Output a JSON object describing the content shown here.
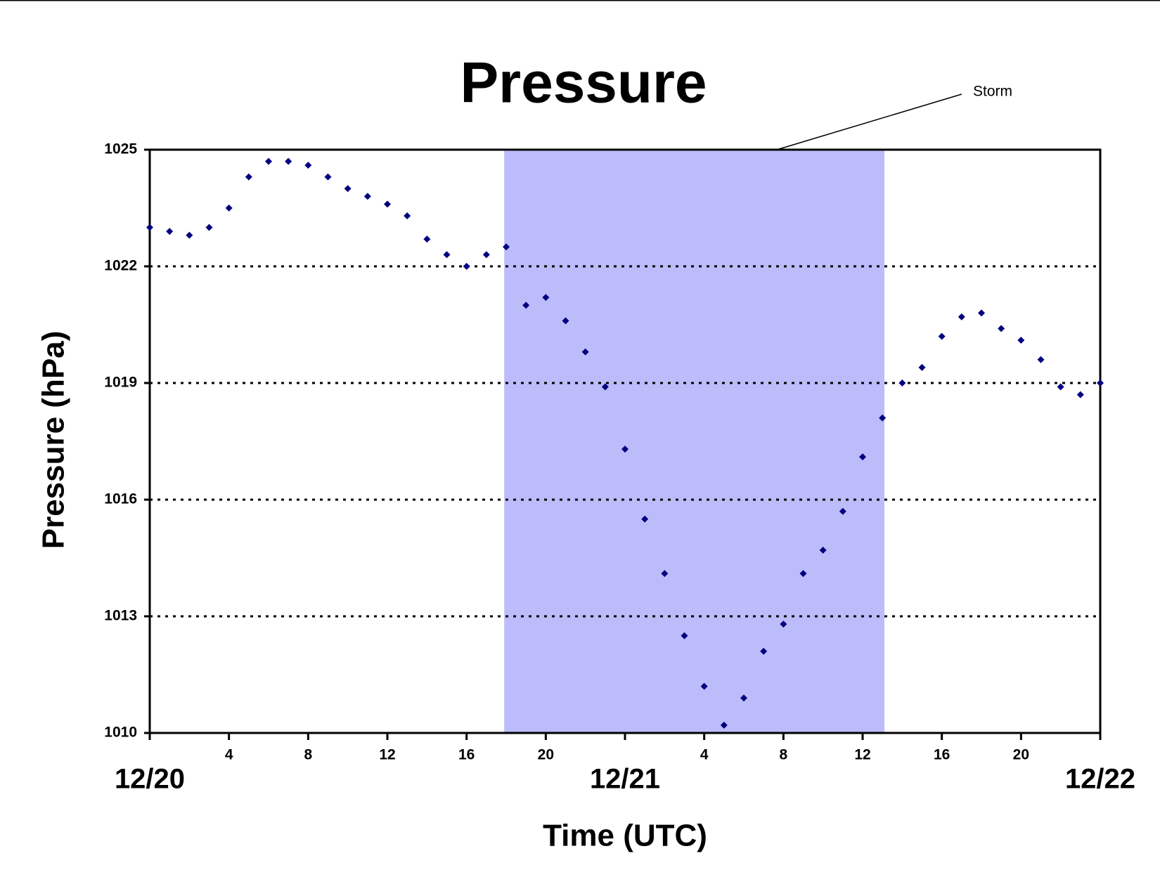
{
  "chart_data": {
    "type": "scatter",
    "title": "Pressure",
    "x_label": "Time (UTC)",
    "y_label": "Pressure (hPa)",
    "x": [
      0,
      1,
      2,
      3,
      4,
      5,
      6,
      7,
      8,
      9,
      10,
      11,
      12,
      13,
      14,
      15,
      16,
      17,
      18,
      19,
      20,
      21,
      22,
      23,
      24,
      25,
      26,
      27,
      28,
      29,
      30,
      31,
      32,
      33,
      34,
      35,
      36,
      37,
      38,
      39,
      40,
      41,
      42,
      43,
      44,
      45,
      46,
      47,
      48
    ],
    "series": [
      {
        "color": "#000080",
        "values": [
          1023.0,
          1022.9,
          1022.8,
          1023.0,
          1023.5,
          1024.3,
          1024.7,
          1024.7,
          1024.6,
          1024.3,
          1024.0,
          1023.8,
          1023.6,
          1023.3,
          1022.7,
          1022.3,
          1022.0,
          1022.3,
          1022.5,
          1021.0,
          1021.2,
          1020.6,
          1019.8,
          1018.9,
          1017.3,
          1015.5,
          1014.1,
          1012.5,
          1011.2,
          1010.2,
          1010.9,
          1012.1,
          1012.8,
          1014.1,
          1014.7,
          1015.7,
          1017.1,
          1018.1,
          1019.0,
          1019.4,
          1020.2,
          1020.7,
          1020.8,
          1020.4,
          1020.1,
          1019.6,
          1018.9,
          1018.7,
          1019.0
        ]
      }
    ],
    "xlim": [
      0,
      48
    ],
    "xticks": [
      4,
      8,
      12,
      16,
      20,
      {
        "value": 28,
        "label": "4"
      },
      {
        "value": 32,
        "label": "8"
      },
      {
        "value": 36,
        "label": "12"
      },
      {
        "value": 40,
        "label": "16"
      },
      {
        "value": 44,
        "label": "20"
      }
    ],
    "date_ticks": [
      {
        "value": 0,
        "label": "12/20"
      },
      {
        "value": 24,
        "label": "12/21"
      },
      {
        "value": 48,
        "label": "12/22"
      }
    ],
    "ylim": [
      1010,
      1025
    ],
    "yticks": [
      1010,
      1013,
      1016,
      1019,
      1022,
      1025
    ],
    "grid": true,
    "storm_label": "Storm",
    "storm_span": [
      17.9,
      37.1
    ],
    "storm_color": "#bcbcfa"
  }
}
